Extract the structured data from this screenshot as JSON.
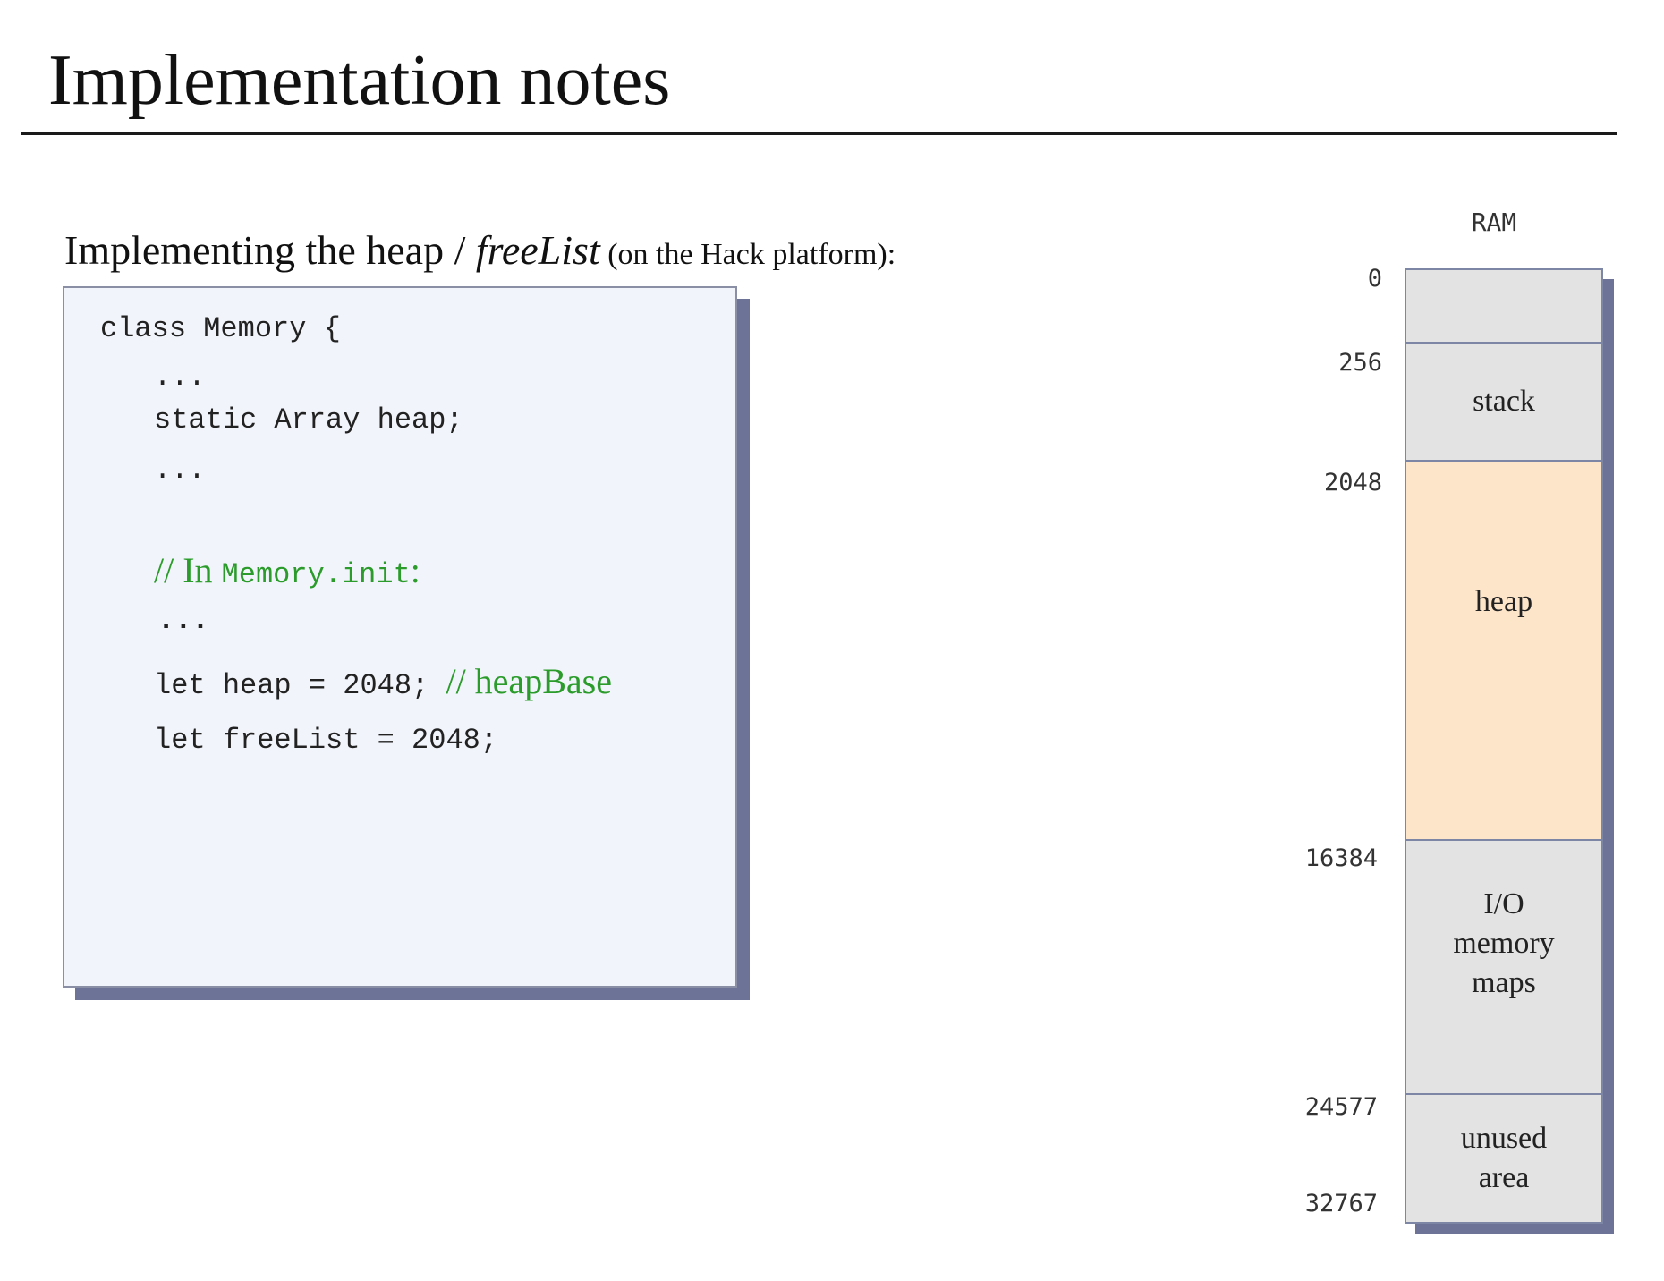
{
  "title": "Implementation notes",
  "subtitle": {
    "prefix": "Implementing the heap / ",
    "emphasis": "freeList",
    "suffix": " (on the Hack platform):"
  },
  "code": {
    "line1": "class Memory {",
    "line2": "...",
    "line3": "static Array heap;",
    "line4": "...",
    "comment_prefix": "// In ",
    "comment_code": "Memory.init",
    "comment_suffix": ":",
    "line6": "...",
    "line7": "let heap = 2048; ",
    "line7_comment": "// heapBase",
    "line8": "let freeList = 2048;"
  },
  "ram": {
    "label": "RAM",
    "segments": [
      {
        "name": "",
        "start": 0,
        "end": 256,
        "color": "#e3e3e3"
      },
      {
        "name": "stack",
        "start": 256,
        "end": 2048,
        "color": "#e3e3e3"
      },
      {
        "name": "heap",
        "start": 2048,
        "end": 16384,
        "color": "#fde5c9"
      },
      {
        "name": "I/O memory maps",
        "start": 16384,
        "end": 24577,
        "color": "#e3e3e3"
      },
      {
        "name": "unused area",
        "start": 24577,
        "end": 32767,
        "color": "#e3e3e3"
      }
    ],
    "addresses": {
      "a0": "0",
      "a256": "256",
      "a2048": "2048",
      "a16384": "16384",
      "a24577": "24577",
      "a32767": "32767"
    },
    "labels": {
      "stack": "stack",
      "heap": "heap",
      "io_line1": "I/O",
      "io_line2": "memory",
      "io_line3": "maps",
      "unused_line1": "unused",
      "unused_line2": "area"
    }
  }
}
